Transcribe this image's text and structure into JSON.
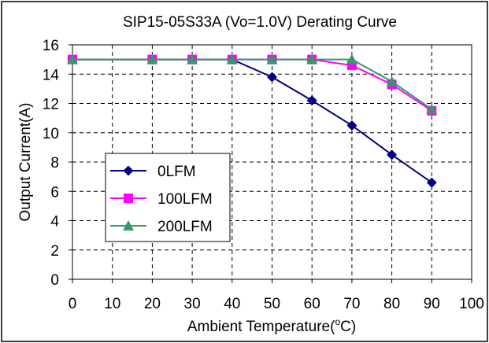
{
  "chart_data": {
    "type": "line",
    "title": "SIP15-05S33A (Vo=1.0V) Derating Curve",
    "xlabel_main": "Ambient Temperature(",
    "xlabel_sup": "o",
    "xlabel_end": "C)",
    "ylabel": "Output Current(A)",
    "xlim": [
      0,
      100
    ],
    "ylim": [
      0,
      16
    ],
    "xticks": [
      0,
      10,
      20,
      30,
      40,
      50,
      60,
      70,
      80,
      90,
      100
    ],
    "yticks": [
      0,
      2,
      4,
      6,
      8,
      10,
      12,
      14,
      16
    ],
    "grid": true,
    "legend_position": "left",
    "series": [
      {
        "name": "0LFM",
        "color": "#000080",
        "marker": "diamond",
        "x": [
          0,
          20,
          30,
          40,
          50,
          60,
          70,
          80,
          90
        ],
        "y": [
          15,
          15,
          15,
          15,
          13.8,
          12.2,
          10.5,
          8.5,
          6.6
        ]
      },
      {
        "name": "100LFM",
        "color": "#ff00ff",
        "marker": "square",
        "x": [
          0,
          20,
          30,
          40,
          50,
          60,
          70,
          80,
          90
        ],
        "y": [
          15,
          15,
          15,
          15,
          15,
          15,
          14.6,
          13.3,
          11.5
        ]
      },
      {
        "name": "200LFM",
        "color": "#339966",
        "marker": "triangle",
        "x": [
          0,
          20,
          30,
          40,
          50,
          60,
          70,
          80,
          90
        ],
        "y": [
          15,
          15,
          15,
          15,
          15,
          15,
          15,
          13.5,
          11.6
        ]
      }
    ]
  }
}
